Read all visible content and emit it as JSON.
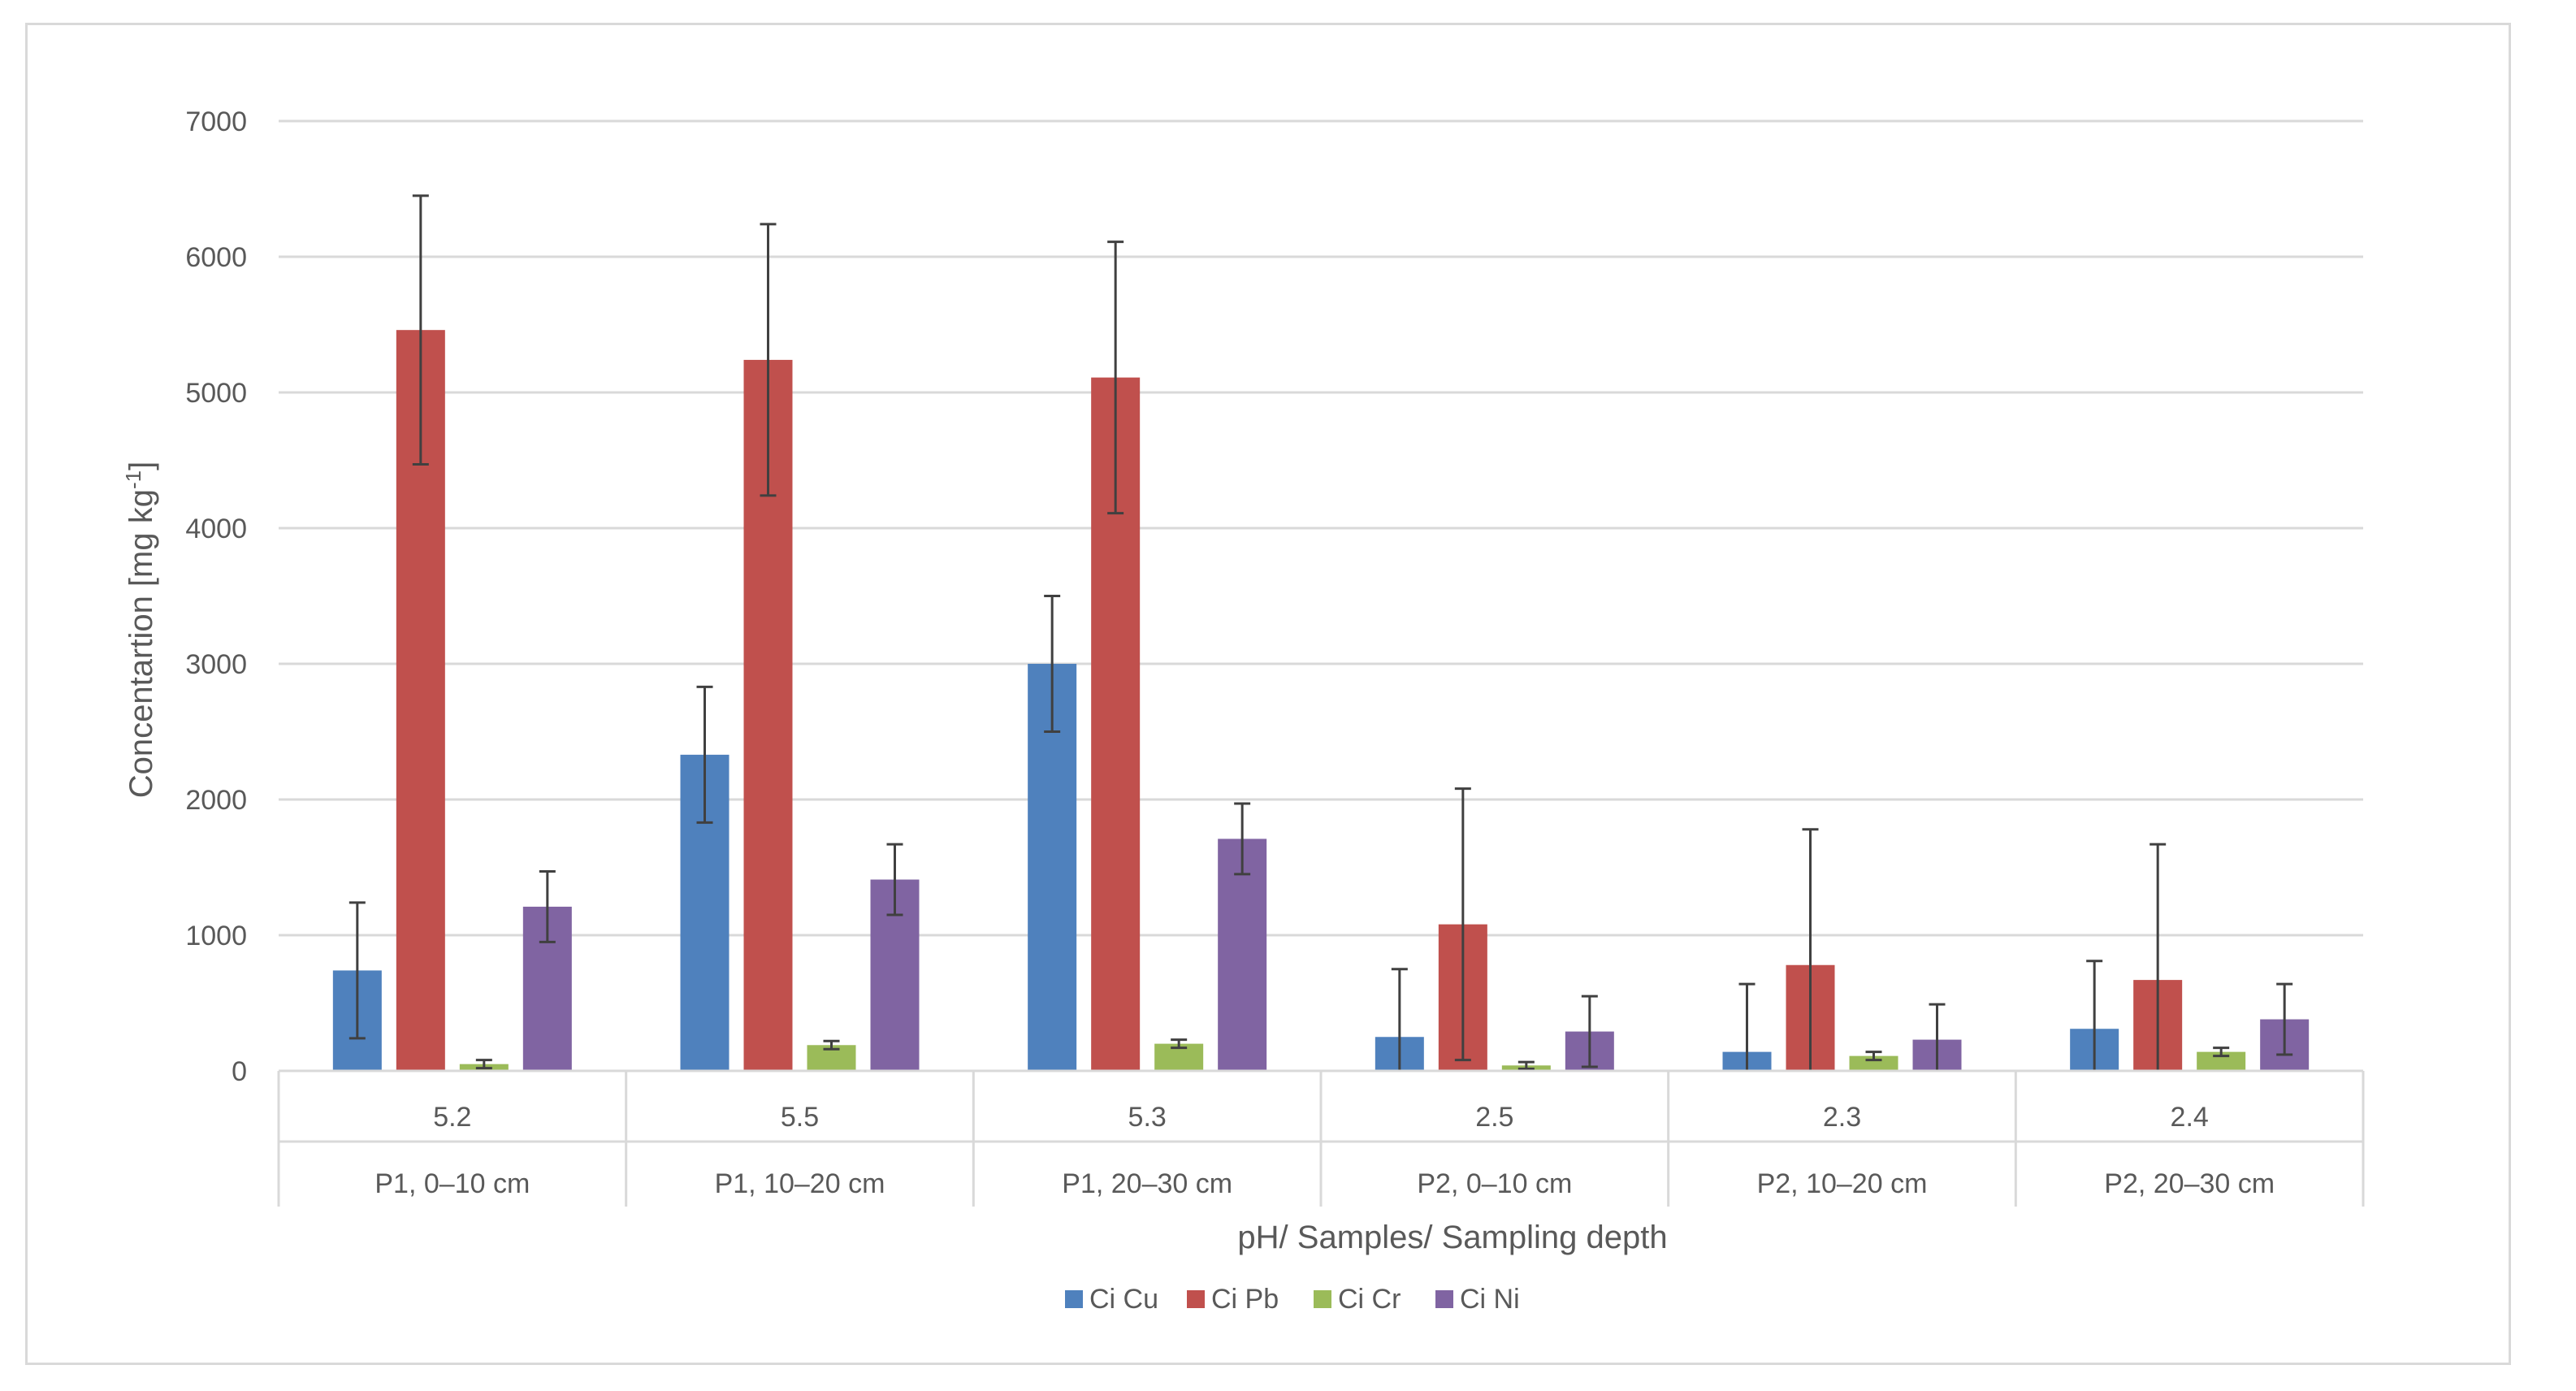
{
  "chart_data": {
    "type": "bar",
    "title": "",
    "xlabel": "pH/ Samples/ Sampling depth",
    "ylabel": "Concentartion [mg kg",
    "ylabel_sup": "-1",
    "ylabel_close": "]",
    "ylim": [
      0,
      7000
    ],
    "yticks": [
      0,
      1000,
      2000,
      3000,
      4000,
      5000,
      6000,
      7000
    ],
    "grid": true,
    "legend_position": "bottom",
    "categories_level1": [
      "5.2",
      "5.5",
      "5.3",
      "2.5",
      "2.3",
      "2.4"
    ],
    "categories_level2": [
      "P1, 0–10 cm",
      "P1, 10–20 cm",
      "P1, 20–30 cm",
      "P2, 0–10 cm",
      "P2, 10–20 cm",
      "P2, 20–30 cm"
    ],
    "series": [
      {
        "name": "Ci Cu",
        "color": "#4f81bd",
        "values": [
          740,
          2330,
          3000,
          250,
          140,
          310
        ],
        "errors": [
          500,
          500,
          500,
          500,
          500,
          500
        ]
      },
      {
        "name": "Ci Pb",
        "color": "#c0504d",
        "values": [
          5460,
          5240,
          5110,
          1080,
          780,
          670
        ],
        "errors": [
          990,
          1000,
          1000,
          1000,
          1000,
          1000
        ]
      },
      {
        "name": "Ci Cr",
        "color": "#9bbb59",
        "values": [
          50,
          190,
          200,
          40,
          110,
          140
        ],
        "errors": [
          30,
          30,
          30,
          25,
          30,
          30
        ]
      },
      {
        "name": "Ci Ni",
        "color": "#8064a2",
        "values": [
          1210,
          1410,
          1710,
          290,
          230,
          380
        ],
        "errors": [
          260,
          260,
          260,
          260,
          260,
          260
        ]
      }
    ]
  }
}
